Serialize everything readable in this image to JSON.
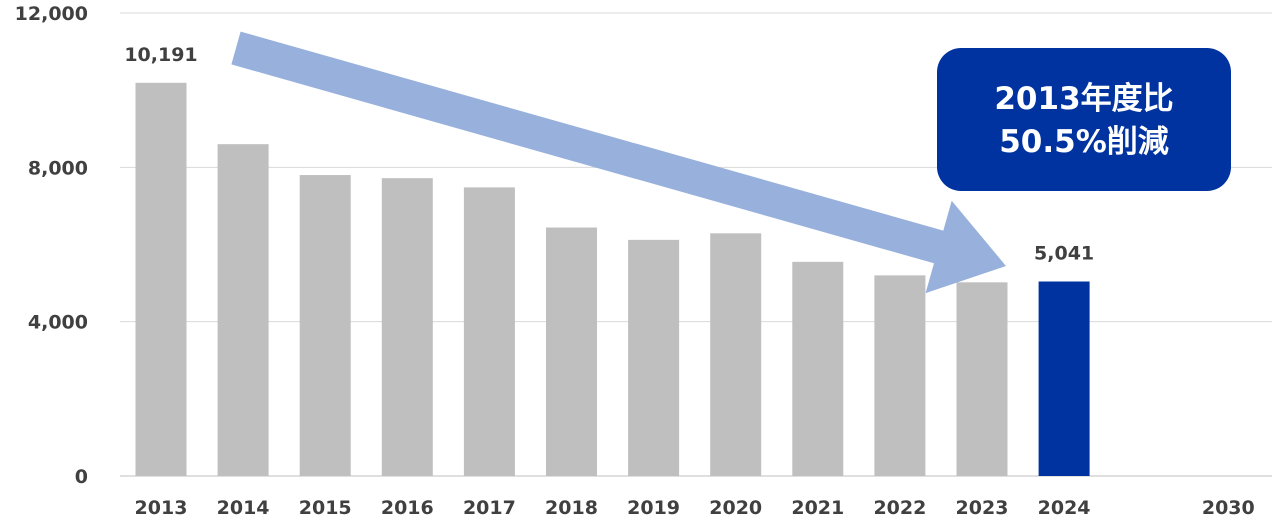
{
  "chart_data": {
    "type": "bar",
    "categories": [
      "2013",
      "2014",
      "2015",
      "2016",
      "2017",
      "2018",
      "2019",
      "2020",
      "2021",
      "2022",
      "2023",
      "2024",
      "",
      "2030"
    ],
    "values": [
      10191,
      8600,
      7800,
      7720,
      7480,
      6440,
      6120,
      6290,
      5550,
      5200,
      5020,
      5041,
      null,
      null
    ],
    "highlight_index": 11,
    "data_labels": [
      {
        "category": "2013",
        "text": "10,191"
      },
      {
        "category": "2024",
        "text": "5,041"
      }
    ],
    "yticks": [
      "0",
      "4,000",
      "8,000",
      "12,000"
    ],
    "ytick_values": [
      0,
      4000,
      8000,
      12000
    ],
    "ylim": [
      0,
      12000
    ],
    "grid": true,
    "title": "",
    "xlabel": "",
    "ylabel": "",
    "colors": {
      "bar": "#bfbfbf",
      "highlight": "#0033a0",
      "arrow": "#97b0dc",
      "callout_bg": "#0033a0",
      "grid": "#d9d9d9"
    },
    "annotations": {
      "callout_lines": [
        "2013年度比",
        "50.5%削減"
      ],
      "trend_arrow": {
        "from": "2013",
        "to": "2024",
        "direction": "down"
      }
    }
  }
}
